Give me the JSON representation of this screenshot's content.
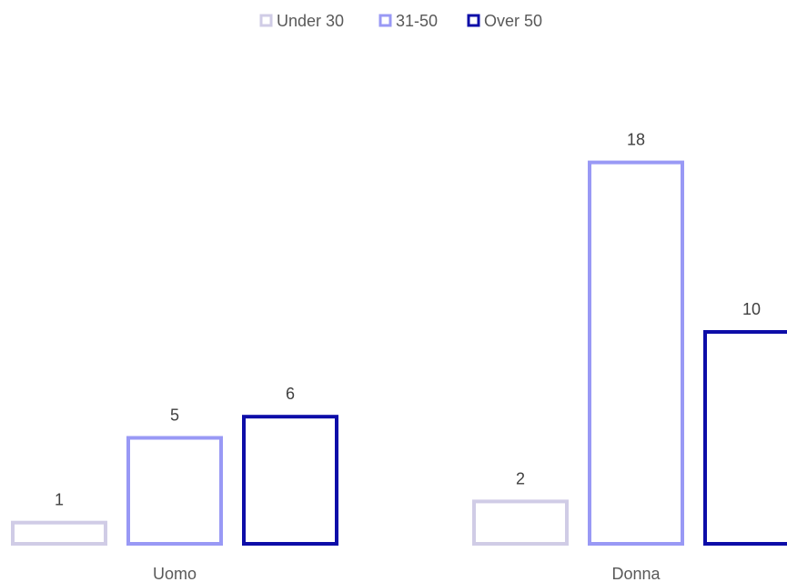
{
  "chart_data": {
    "type": "bar",
    "categories": [
      "Uomo",
      "Donna"
    ],
    "series": [
      {
        "name": "Under 30",
        "values": [
          1,
          2
        ],
        "color": "#d0cce6"
      },
      {
        "name": "31-50",
        "values": [
          5,
          18
        ],
        "color": "#9999f5"
      },
      {
        "name": "Over 50",
        "values": [
          6,
          10
        ],
        "color": "#0d0da8"
      }
    ],
    "bar_style": "outlined",
    "legend_position": "top-center",
    "title": "",
    "xlabel": "",
    "ylabel": "",
    "ylim": [
      0,
      18
    ],
    "grid": false,
    "data_labels": true
  }
}
